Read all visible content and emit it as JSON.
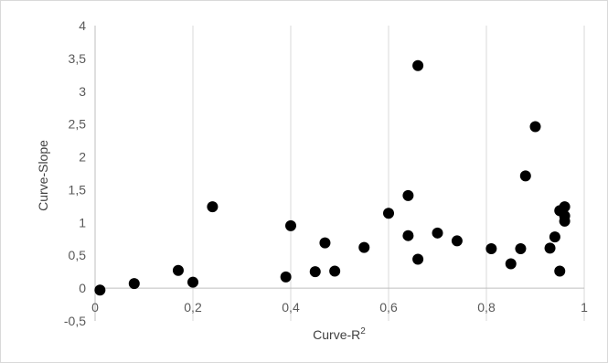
{
  "chart_data": {
    "type": "scatter",
    "xlabel": "Curve-R",
    "xlabel_superscript": "2",
    "ylabel": "Curve-Slope",
    "xlim": [
      0,
      1
    ],
    "ylim": [
      -0.5,
      4
    ],
    "x_ticks": [
      {
        "value": 0,
        "label": "0"
      },
      {
        "value": 0.2,
        "label": "0,2"
      },
      {
        "value": 0.4,
        "label": "0,4"
      },
      {
        "value": 0.6,
        "label": "0,6"
      },
      {
        "value": 0.8,
        "label": "0,8"
      },
      {
        "value": 1,
        "label": "1"
      }
    ],
    "y_ticks": [
      {
        "value": -0.5,
        "label": "-0,5"
      },
      {
        "value": 0,
        "label": "0"
      },
      {
        "value": 0.5,
        "label": "0,5"
      },
      {
        "value": 1,
        "label": "1"
      },
      {
        "value": 1.5,
        "label": "1,5"
      },
      {
        "value": 2,
        "label": "2"
      },
      {
        "value": 2.5,
        "label": "2,5"
      },
      {
        "value": 3,
        "label": "3"
      },
      {
        "value": 3.5,
        "label": "3,5"
      },
      {
        "value": 4,
        "label": "4"
      }
    ],
    "grid": "vertical",
    "marker_color": "#000000",
    "gridline_color": "#d9d9d9",
    "points": [
      {
        "x": 0.01,
        "y": -0.03
      },
      {
        "x": 0.08,
        "y": 0.07
      },
      {
        "x": 0.17,
        "y": 0.27
      },
      {
        "x": 0.2,
        "y": 0.09
      },
      {
        "x": 0.24,
        "y": 1.24
      },
      {
        "x": 0.39,
        "y": 0.17
      },
      {
        "x": 0.4,
        "y": 0.95
      },
      {
        "x": 0.45,
        "y": 0.25
      },
      {
        "x": 0.47,
        "y": 0.69
      },
      {
        "x": 0.49,
        "y": 0.26
      },
      {
        "x": 0.55,
        "y": 0.62
      },
      {
        "x": 0.6,
        "y": 1.14
      },
      {
        "x": 0.64,
        "y": 1.41
      },
      {
        "x": 0.64,
        "y": 0.8
      },
      {
        "x": 0.66,
        "y": 3.39
      },
      {
        "x": 0.66,
        "y": 0.44
      },
      {
        "x": 0.7,
        "y": 0.84
      },
      {
        "x": 0.74,
        "y": 0.72
      },
      {
        "x": 0.81,
        "y": 0.6
      },
      {
        "x": 0.85,
        "y": 0.37
      },
      {
        "x": 0.87,
        "y": 0.6
      },
      {
        "x": 0.88,
        "y": 1.71
      },
      {
        "x": 0.9,
        "y": 2.46
      },
      {
        "x": 0.93,
        "y": 0.61
      },
      {
        "x": 0.94,
        "y": 0.78
      },
      {
        "x": 0.95,
        "y": 1.18
      },
      {
        "x": 0.95,
        "y": 0.26
      },
      {
        "x": 0.96,
        "y": 1.24
      },
      {
        "x": 0.96,
        "y": 1.1
      },
      {
        "x": 0.96,
        "y": 1.02
      }
    ]
  }
}
